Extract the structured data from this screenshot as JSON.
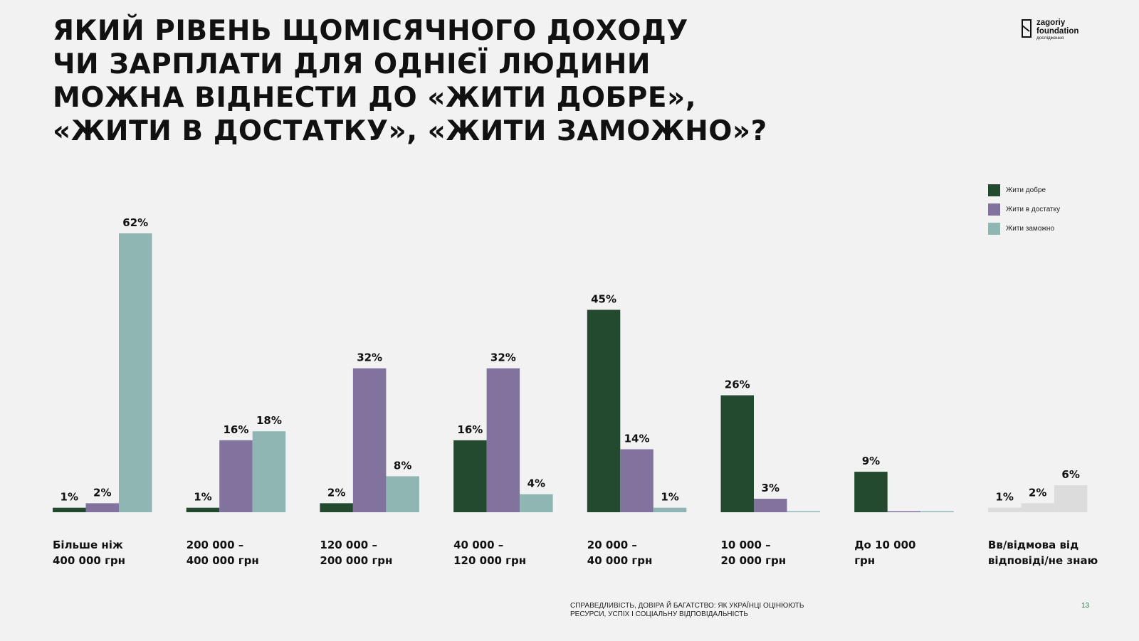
{
  "title_lines": [
    "ЯКИЙ РІВЕНЬ ЩОМІСЯЧНОГО ДОХОДУ",
    "ЧИ ЗАРПЛАТИ ДЛЯ ОДНІЄЇ ЛЮДИНИ",
    "МОЖНА ВІДНЕСТИ ДО «ЖИТИ ДОБРЕ»,",
    "«ЖИТИ В ДОСТАТКУ», «ЖИТИ ЗАМОЖНО»?"
  ],
  "logo": {
    "line1": "zagoriy",
    "line2": "foundation",
    "line3": "дослідження"
  },
  "footer": {
    "text_line1": "СПРАВЕДЛИВІСТЬ, ДОВІРА Й БАГАТСТВО: ЯК УКРАЇНЦІ ОЦІНЮЮТЬ",
    "text_line2": "РЕСУРСИ, УСПІХ І СОЦІАЛЬНУ ВІДПОВІДАЛЬНІСТЬ",
    "page": "13"
  },
  "chart_data": {
    "type": "bar",
    "categories": [
      "Більше ніж\n400 000 грн",
      "200 000 –\n400 000 грн",
      "120 000 –\n200 000 грн",
      "40 000 –\n120 000 грн",
      "20 000 –\n40 000 грн",
      "10 000 –\n20 000 грн",
      "До 10 000\nгрн",
      "Вв/відмова від\nвідповіді/не знаю"
    ],
    "series": [
      {
        "name": "Жити добре",
        "color": "#234a2e",
        "values": [
          1,
          1,
          2,
          16,
          45,
          26,
          9,
          null
        ],
        "labels": [
          "1%",
          "1%",
          "2%",
          "16%",
          "45%",
          "26%",
          "9%",
          ""
        ]
      },
      {
        "name": "Жити в достатку",
        "color": "#82729e",
        "values": [
          2,
          16,
          32,
          32,
          14,
          3,
          0,
          null
        ],
        "labels": [
          "2%",
          "16%",
          "32%",
          "32%",
          "14%",
          "3%",
          "",
          ""
        ]
      },
      {
        "name": "Жити заможно",
        "color": "#8fb6b3",
        "values": [
          62,
          18,
          8,
          4,
          1,
          0,
          0,
          null
        ],
        "labels": [
          "62%",
          "18%",
          "8%",
          "4%",
          "1%",
          "",
          "",
          ""
        ]
      }
    ],
    "no_answer": {
      "color": "#dcdcdc",
      "values": [
        1,
        2,
        6
      ],
      "labels": [
        "1%",
        "2%",
        "6%"
      ]
    },
    "ylim": [
      0,
      62
    ],
    "legend_position": "top-right",
    "grid": false
  }
}
